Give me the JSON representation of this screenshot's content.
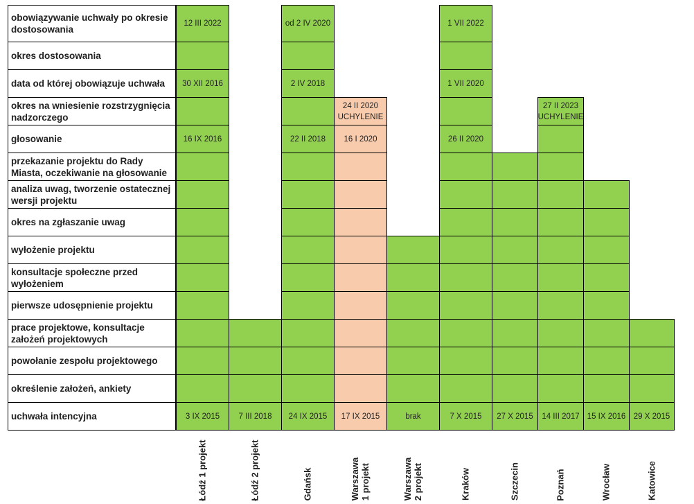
{
  "chart_data": {
    "type": "table",
    "title": "",
    "stages": [
      "obowiązywanie uchwały po okresie dostosowania",
      "okres dostosowania",
      "data od której obowiązuje uchwała",
      "okres na wniesienie rozstrzygnięcia nadzorczego",
      "głosowanie",
      "przekazanie projektu do Rady Miasta, oczekiwanie na głosowanie",
      "analiza uwag, tworzenie ostatecznej wersji projektu",
      "okres na zgłaszanie uwag",
      "wyłożenie projektu",
      "konsultacje społeczne przed wyłożeniem",
      "pierwsze udosępnienie projektu",
      "prace projektowe, konsultacje założeń projektowych",
      "powołanie zespołu projektowego",
      "określenie założeń, ankiety",
      "uchwała intencyjna"
    ],
    "cities": [
      {
        "name": "Łódź 1 projekt",
        "color": "#92d050",
        "highest_stage": 0,
        "labels": {
          "0": [
            "12 III 2022"
          ],
          "2": [
            "30 XII 2016"
          ],
          "4": [
            "16 IX 2016"
          ],
          "14": [
            "3 IX 2015"
          ]
        }
      },
      {
        "name": "Łódź 2 projekt",
        "color": "#92d050",
        "highest_stage": 11,
        "labels": {
          "14": [
            "7 III 2018"
          ]
        }
      },
      {
        "name": "Gdańsk",
        "color": "#92d050",
        "highest_stage": 0,
        "labels": {
          "0": [
            "od 2 IV 2020"
          ],
          "2": [
            "2 IV 2018"
          ],
          "4": [
            "22 II 2018"
          ],
          "14": [
            "24 IX  2015"
          ]
        }
      },
      {
        "name": "Warszawa\n1 projekt",
        "color": "#f8cbad",
        "highest_stage": 3,
        "labels": {
          "3": [
            "24 II 2020",
            "UCHYLENIE"
          ],
          "4": [
            "16 I 2020"
          ],
          "14": [
            "17 IX 2015"
          ]
        }
      },
      {
        "name": "Warszawa\n2 projekt",
        "color": "#92d050",
        "highest_stage": 8,
        "labels": {
          "14": [
            "brak"
          ]
        }
      },
      {
        "name": "Kraków",
        "color": "#92d050",
        "highest_stage": 0,
        "labels": {
          "0": [
            "1 VII 2022"
          ],
          "2": [
            "1 VII 2020"
          ],
          "4": [
            "26 II 2020"
          ],
          "14": [
            "7 X 2015"
          ]
        }
      },
      {
        "name": "Szczecin",
        "color": "#92d050",
        "highest_stage": 5,
        "labels": {
          "14": [
            "27 X 2015"
          ]
        }
      },
      {
        "name": "Poznań",
        "color": "#92d050",
        "highest_stage": 3,
        "labels": {
          "3": [
            "27 II 2023",
            "UCHYLENIE"
          ],
          "14": [
            "14 III 2017"
          ]
        }
      },
      {
        "name": "Wrocław",
        "color": "#92d050",
        "highest_stage": 6,
        "labels": {
          "14": [
            "15 IX 2016"
          ]
        }
      },
      {
        "name": "Katowice",
        "color": "#92d050",
        "highest_stage": 11,
        "labels": {
          "14": [
            "29 X 2015"
          ]
        }
      }
    ],
    "highlight_colors": {
      "completed": "#92d050",
      "annulled": "#f8cbad"
    }
  }
}
